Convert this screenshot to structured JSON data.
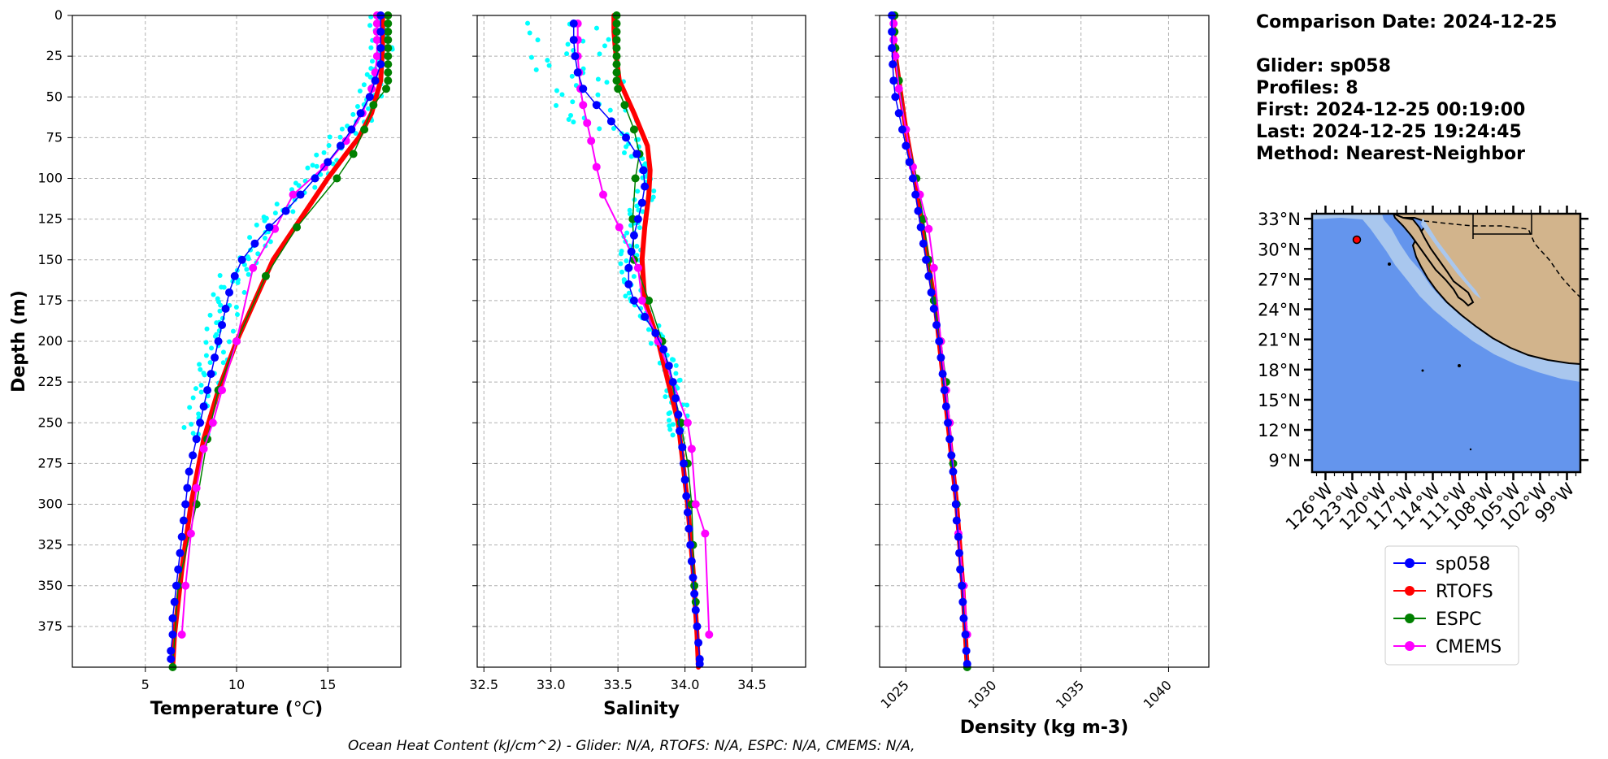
{
  "header": {
    "comparison_date": "Comparison Date: 2024-12-25",
    "glider": "Glider: sp058",
    "profiles": "Profiles: 8",
    "first": "First: 2024-12-25 00:19:00",
    "last": "Last: 2024-12-25 19:24:45",
    "method": "Method: Nearest-Neighbor"
  },
  "footer": "Ocean Heat Content (kJ/cm^2) - Glider: N/A,  RTOFS: N/A,  ESPC: N/A,  CMEMS: N/A,",
  "colors": {
    "glider": "#0000ff",
    "glider_raw": "#00ffff",
    "rtofs": "#ff0000",
    "espc": "#008000",
    "cmems": "#ff00ff",
    "ocean": "#6495ed",
    "shelf": "#a9c7ee",
    "land": "#d2b48c"
  },
  "chart_data": [
    {
      "type": "line",
      "id": "temperature",
      "xlabel": "Temperature (°C)",
      "ylabel": "Depth (m)",
      "xlim": [
        1,
        19
      ],
      "ylim": [
        400,
        0
      ],
      "xticks": [
        5,
        10,
        15
      ],
      "yticks": [
        0,
        25,
        50,
        75,
        100,
        125,
        150,
        175,
        200,
        225,
        250,
        275,
        300,
        325,
        350,
        375
      ],
      "grid": true,
      "series": [
        {
          "name": "sp058",
          "color": "#0000ff",
          "width": 1.5,
          "marker": 5,
          "x": [
            17.9,
            17.9,
            17.9,
            17.9,
            17.6,
            17.3,
            16.8,
            16.3,
            15.7,
            15.0,
            14.3,
            13.5,
            12.7,
            11.8,
            11.0,
            10.3,
            9.9,
            9.6,
            9.4,
            9.2,
            9.0,
            8.8,
            8.6,
            8.4,
            8.2,
            8.0,
            7.8,
            7.6,
            7.4,
            7.3,
            7.2,
            7.1,
            7.0,
            6.9,
            6.8,
            6.7,
            6.6,
            6.5,
            6.5,
            6.4,
            6.4
          ],
          "y": [
            0,
            10,
            20,
            30,
            40,
            50,
            60,
            70,
            80,
            90,
            100,
            110,
            120,
            130,
            140,
            150,
            160,
            170,
            180,
            190,
            200,
            210,
            220,
            230,
            240,
            250,
            260,
            270,
            280,
            290,
            300,
            310,
            320,
            330,
            340,
            350,
            360,
            370,
            380,
            390,
            395
          ]
        },
        {
          "name": "RTOFS",
          "color": "#ff0000",
          "width": 6,
          "marker": 0,
          "x": [
            18.0,
            18.0,
            18.0,
            17.9,
            17.4,
            16.7,
            16.0,
            15.0,
            13.5,
            12.0,
            10.0,
            9.0,
            8.2,
            7.5,
            7.0,
            6.6,
            6.5
          ],
          "y": [
            0,
            10,
            20,
            40,
            60,
            75,
            85,
            100,
            125,
            150,
            200,
            230,
            260,
            300,
            340,
            380,
            400
          ]
        },
        {
          "name": "ESPC",
          "color": "#008000",
          "width": 1.5,
          "marker": 5,
          "x": [
            18.3,
            18.3,
            18.3,
            18.3,
            18.3,
            18.3,
            18.3,
            18.3,
            18.3,
            18.2,
            17.5,
            17.0,
            16.4,
            15.5,
            13.3,
            11.6,
            10.0,
            9.0,
            8.4,
            7.8,
            6.8,
            6.5
          ],
          "y": [
            0,
            5,
            10,
            15,
            20,
            25,
            30,
            35,
            40,
            45,
            55,
            70,
            85,
            100,
            130,
            160,
            200,
            230,
            260,
            300,
            350,
            400
          ]
        },
        {
          "name": "CMEMS",
          "color": "#ff00ff",
          "width": 2,
          "marker": 5,
          "x": [
            17.7,
            17.7,
            17.7,
            17.7,
            17.7,
            17.6,
            17.4,
            16.9,
            16.0,
            14.8,
            13.1,
            12.1,
            10.9,
            10.0,
            9.2,
            8.7,
            8.2,
            7.8,
            7.5,
            7.2,
            7.0
          ],
          "y": [
            0,
            5,
            10,
            15,
            25,
            35,
            45,
            60,
            77,
            93,
            110,
            131,
            155,
            200,
            230,
            250,
            266,
            290,
            318,
            350,
            380
          ]
        }
      ]
    },
    {
      "type": "line",
      "id": "salinity",
      "xlabel": "Salinity",
      "xlim": [
        32.45,
        34.9
      ],
      "ylim": [
        400,
        0
      ],
      "xticks": [
        32.5,
        33.0,
        33.5,
        34.0,
        34.5
      ],
      "xtick_labels": [
        "32.5",
        "33.0",
        "33.5",
        "34.0",
        "34.5"
      ],
      "yticks": [
        0,
        25,
        50,
        75,
        100,
        125,
        150,
        175,
        200,
        225,
        250,
        275,
        300,
        325,
        350,
        375
      ],
      "grid": true,
      "series": [
        {
          "name": "sp058",
          "color": "#0000ff",
          "width": 1.5,
          "marker": 5,
          "x": [
            33.17,
            33.17,
            33.18,
            33.2,
            33.24,
            33.34,
            33.45,
            33.56,
            33.64,
            33.69,
            33.7,
            33.68,
            33.65,
            33.62,
            33.6,
            33.58,
            33.58,
            33.62,
            33.7,
            33.78,
            33.84,
            33.88,
            33.91,
            33.93,
            33.95,
            33.96,
            33.98,
            33.99,
            34.0,
            34.01,
            34.02,
            34.03,
            34.04,
            34.05,
            34.06,
            34.07,
            34.08,
            34.09,
            34.1,
            34.11,
            34.11
          ],
          "y": [
            5,
            15,
            25,
            35,
            45,
            55,
            65,
            75,
            85,
            95,
            105,
            115,
            125,
            135,
            145,
            155,
            165,
            175,
            185,
            195,
            205,
            215,
            225,
            235,
            245,
            255,
            265,
            275,
            285,
            295,
            305,
            315,
            325,
            335,
            345,
            355,
            365,
            375,
            385,
            395,
            398
          ]
        },
        {
          "name": "RTOFS",
          "color": "#ff0000",
          "width": 6,
          "marker": 0,
          "x": [
            33.47,
            33.47,
            33.48,
            33.51,
            33.62,
            33.72,
            33.74,
            33.73,
            33.7,
            33.68,
            33.7,
            33.8,
            33.95,
            34.02,
            34.06,
            34.09,
            34.1
          ],
          "y": [
            0,
            10,
            20,
            40,
            60,
            80,
            95,
            110,
            130,
            150,
            175,
            200,
            250,
            300,
            340,
            380,
            400
          ]
        },
        {
          "name": "ESPC",
          "color": "#008000",
          "width": 1.5,
          "marker": 5,
          "x": [
            33.49,
            33.49,
            33.49,
            33.49,
            33.49,
            33.49,
            33.49,
            33.49,
            33.49,
            33.5,
            33.55,
            33.62,
            33.66,
            33.63,
            33.61,
            33.62,
            33.73,
            33.83,
            33.97,
            34.02,
            34.05,
            34.06,
            34.07,
            34.08
          ],
          "y": [
            0,
            5,
            10,
            15,
            20,
            25,
            30,
            35,
            40,
            45,
            55,
            70,
            85,
            100,
            125,
            150,
            175,
            200,
            250,
            275,
            300,
            325,
            350,
            360
          ]
        },
        {
          "name": "CMEMS",
          "color": "#ff00ff",
          "width": 2,
          "marker": 5,
          "x": [
            33.2,
            33.2,
            33.2,
            33.21,
            33.22,
            33.24,
            33.27,
            33.3,
            33.34,
            33.39,
            33.51,
            33.65,
            33.68,
            33.8,
            34.02,
            34.05,
            34.08,
            34.15,
            34.18
          ],
          "y": [
            5,
            15,
            25,
            35,
            45,
            55,
            66,
            77,
            93,
            110,
            130,
            155,
            175,
            200,
            250,
            266,
            300,
            318,
            380
          ]
        }
      ]
    },
    {
      "type": "line",
      "id": "density",
      "xlabel": "Density (kg m-3)",
      "xlim": [
        1023.5,
        1042.3
      ],
      "ylim": [
        400,
        0
      ],
      "xticks": [
        1025,
        1030,
        1035,
        1040
      ],
      "xtick_labels": [
        "1025",
        "1030",
        "1035",
        "1040"
      ],
      "yticks": [
        0,
        25,
        50,
        75,
        100,
        125,
        150,
        175,
        200,
        225,
        250,
        275,
        300,
        325,
        350,
        375
      ],
      "grid": true,
      "series": [
        {
          "name": "sp058",
          "color": "#0000ff",
          "width": 1.5,
          "marker": 5,
          "x": [
            1024.2,
            1024.2,
            1024.2,
            1024.25,
            1024.3,
            1024.4,
            1024.6,
            1024.8,
            1025.0,
            1025.2,
            1025.4,
            1025.55,
            1025.7,
            1025.85,
            1026.0,
            1026.15,
            1026.3,
            1026.45,
            1026.6,
            1026.75,
            1026.9,
            1027.0,
            1027.1,
            1027.2,
            1027.3,
            1027.4,
            1027.5,
            1027.6,
            1027.7,
            1027.8,
            1027.85,
            1027.9,
            1028.0,
            1028.05,
            1028.1,
            1028.2,
            1028.25,
            1028.3,
            1028.4,
            1028.45,
            1028.5
          ],
          "y": [
            0,
            10,
            20,
            30,
            40,
            50,
            60,
            70,
            80,
            90,
            100,
            110,
            120,
            130,
            140,
            150,
            160,
            170,
            180,
            190,
            200,
            210,
            220,
            230,
            240,
            250,
            260,
            270,
            280,
            290,
            300,
            310,
            320,
            330,
            340,
            350,
            360,
            370,
            380,
            390,
            398
          ]
        },
        {
          "name": "RTOFS",
          "color": "#ff0000",
          "width": 6,
          "marker": 0,
          "x": [
            1024.3,
            1024.3,
            1024.35,
            1024.6,
            1025.0,
            1025.5,
            1026.1,
            1026.7,
            1027.1,
            1027.5,
            1027.9,
            1028.25,
            1028.5
          ],
          "y": [
            0,
            10,
            20,
            40,
            70,
            100,
            140,
            180,
            220,
            260,
            300,
            350,
            400
          ]
        },
        {
          "name": "ESPC",
          "color": "#008000",
          "width": 1.5,
          "marker": 5,
          "x": [
            1024.35,
            1024.35,
            1024.4,
            1024.6,
            1025.0,
            1025.6,
            1026.0,
            1026.3,
            1026.6,
            1027.0,
            1027.3,
            1027.5,
            1027.7,
            1027.9,
            1028.2,
            1028.5
          ],
          "y": [
            0,
            10,
            20,
            40,
            70,
            100,
            125,
            150,
            175,
            200,
            225,
            250,
            275,
            300,
            350,
            400
          ]
        },
        {
          "name": "CMEMS",
          "color": "#ff00ff",
          "width": 2,
          "marker": 5,
          "x": [
            1024.3,
            1024.3,
            1024.4,
            1024.6,
            1025.0,
            1025.4,
            1025.8,
            1026.3,
            1026.6,
            1027.0,
            1027.3,
            1027.5,
            1027.8,
            1028.0,
            1028.3,
            1028.5
          ],
          "y": [
            5,
            15,
            25,
            45,
            70,
            93,
            110,
            131,
            155,
            200,
            230,
            250,
            290,
            318,
            350,
            380
          ]
        }
      ]
    },
    {
      "type": "map",
      "id": "location-map",
      "lon_range": [
        -127.5,
        -97.5
      ],
      "lat_range": [
        7.8,
        33.5
      ],
      "xtick_labels": [
        "126°W",
        "123°W",
        "120°W",
        "117°W",
        "114°W",
        "111°W",
        "108°W",
        "105°W",
        "102°W",
        "99°W"
      ],
      "xtick_values": [
        -126,
        -123,
        -120,
        -117,
        -114,
        -111,
        -108,
        -105,
        -102,
        -99
      ],
      "ytick_labels": [
        "33°N",
        "30°N",
        "27°N",
        "24°N",
        "21°N",
        "18°N",
        "15°N",
        "12°N",
        "9°N"
      ],
      "ytick_values": [
        33,
        30,
        27,
        24,
        21,
        18,
        15,
        12,
        9
      ],
      "glider_location": {
        "lon": -123.0,
        "lat": 31.1
      },
      "legend_placement": "below-map"
    }
  ],
  "legend": [
    {
      "label": "sp058",
      "color": "#0000ff"
    },
    {
      "label": "RTOFS",
      "color": "#ff0000"
    },
    {
      "label": "ESPC",
      "color": "#008000"
    },
    {
      "label": "CMEMS",
      "color": "#ff00ff"
    }
  ]
}
